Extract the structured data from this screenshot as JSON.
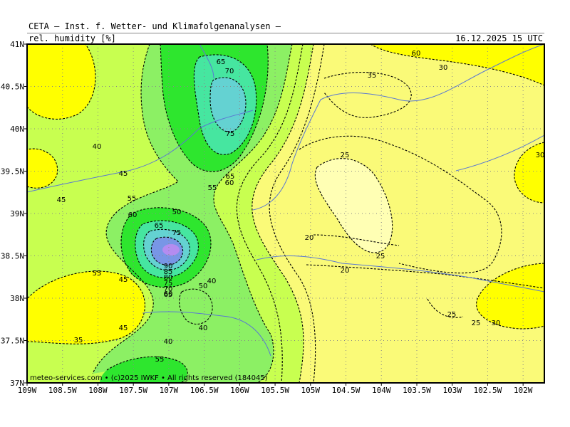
{
  "header": {
    "title": "CETA — Inst. f. Wetter- und Klimafolgenanalysen —",
    "parameter": "rel. humidity [%]",
    "valid_time": "16.12.2025 15 UTC"
  },
  "map": {
    "lat_labels": [
      "41N",
      "40.5N",
      "40N",
      "39.5N",
      "39N",
      "38.5N",
      "38N",
      "37.5N",
      "37N"
    ],
    "lon_labels": [
      "109W",
      "108.5W",
      "108W",
      "107.5W",
      "107W",
      "106.5W",
      "106W",
      "105.5W",
      "105W",
      "104.5W",
      "104W",
      "103.5W",
      "103W",
      "102.5W",
      "102W"
    ],
    "lat_range": [
      37,
      41
    ],
    "lon_range": [
      -109,
      -101.7
    ],
    "grid": "dotted",
    "contour_labels": [
      "65",
      "70",
      "75",
      "65",
      "60",
      "55",
      "50",
      "40",
      "45",
      "45",
      "55",
      "60",
      "65",
      "75",
      "90",
      "85",
      "80",
      "75",
      "70",
      "65",
      "60",
      "55",
      "45",
      "40",
      "50",
      "45",
      "35",
      "40",
      "40",
      "55",
      "60",
      "35",
      "30",
      "25",
      "20",
      "25",
      "20",
      "25",
      "25",
      "30",
      "30"
    ],
    "credit": "meteo-services.com • (c)2025 IWKF • All rights reserved (184045)",
    "colors": {
      "rh_20": "#ffffb4",
      "rh_25": "#fafa78",
      "rh_35": "#ffff00",
      "rh_45": "#c8ff50",
      "rh_55": "#8cf064",
      "rh_65": "#2ee62e",
      "rh_70": "#46e6a0",
      "rh_75": "#64d2d2",
      "rh_85": "#7896e6",
      "rh_90": "#b48cf0",
      "rivers": "#5a78d2"
    }
  }
}
